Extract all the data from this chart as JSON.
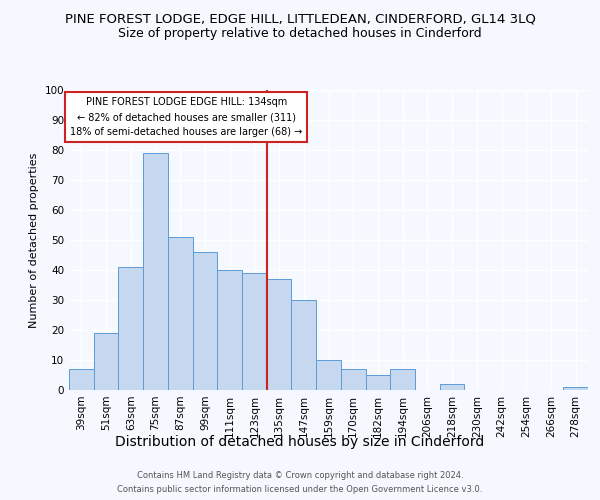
{
  "title": "PINE FOREST LODGE, EDGE HILL, LITTLEDEAN, CINDERFORD, GL14 3LQ",
  "subtitle": "Size of property relative to detached houses in Cinderford",
  "xlabel": "Distribution of detached houses by size in Cinderford",
  "ylabel": "Number of detached properties",
  "categories": [
    "39sqm",
    "51sqm",
    "63sqm",
    "75sqm",
    "87sqm",
    "99sqm",
    "111sqm",
    "123sqm",
    "135sqm",
    "147sqm",
    "159sqm",
    "170sqm",
    "182sqm",
    "194sqm",
    "206sqm",
    "218sqm",
    "230sqm",
    "242sqm",
    "254sqm",
    "266sqm",
    "278sqm"
  ],
  "values": [
    7,
    19,
    41,
    79,
    51,
    46,
    40,
    39,
    37,
    30,
    10,
    7,
    5,
    7,
    0,
    2,
    0,
    0,
    0,
    0,
    1
  ],
  "bar_color": "#c5d8f0",
  "bar_edge_color": "#5b9bd5",
  "ylim": [
    0,
    100
  ],
  "yticks": [
    0,
    10,
    20,
    30,
    40,
    50,
    60,
    70,
    80,
    90,
    100
  ],
  "vline_x": 7.5,
  "vline_color": "#cc2222",
  "annotation_line1": "PINE FOREST LODGE EDGE HILL: 134sqm",
  "annotation_line2": "← 82% of detached houses are smaller (311)",
  "annotation_line3": "18% of semi-detached houses are larger (68) →",
  "annotation_box_edgecolor": "#cc2222",
  "footnote1": "Contains HM Land Registry data © Crown copyright and database right 2024.",
  "footnote2": "Contains public sector information licensed under the Open Government Licence v3.0.",
  "bg_color": "#f5f8ff",
  "plot_bg_color": "#f5f8ff",
  "grid_color": "#ffffff",
  "title_fontsize": 9.5,
  "subtitle_fontsize": 9,
  "xlabel_fontsize": 10,
  "ylabel_fontsize": 8,
  "tick_fontsize": 7.5,
  "footnote_fontsize": 6
}
